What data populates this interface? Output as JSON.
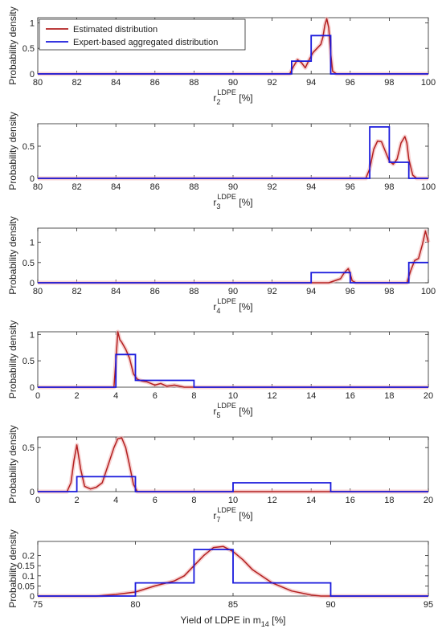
{
  "chart_data": [
    {
      "type": "line",
      "ylabel": "Probability density",
      "xlabel": {
        "base": "r",
        "sub": "2",
        "sup": "LDPE",
        "unit": " [%]"
      },
      "xlim": [
        80,
        100
      ],
      "xticks": [
        80,
        82,
        84,
        86,
        88,
        90,
        92,
        94,
        96,
        98,
        100
      ],
      "ylim": [
        0,
        1.1
      ],
      "yticks": [
        0,
        0.5,
        1
      ],
      "ytick_labels": [
        "0",
        "0.5",
        "1"
      ],
      "legend": {
        "placement": "top-left",
        "entries": [
          {
            "label": "Estimated distribution",
            "color": "#b32020"
          },
          {
            "label": "Expert-based aggregated distribution",
            "color": "#1a1adc"
          }
        ]
      },
      "series": [
        {
          "name": "Estimated distribution",
          "color": "#b32020",
          "x": [
            80,
            92.9,
            93.1,
            93.3,
            93.5,
            93.7,
            93.9,
            94.1,
            94.3,
            94.5,
            94.6,
            94.7,
            94.8,
            94.9,
            95.0,
            95.1,
            95.3,
            100
          ],
          "y": [
            0,
            0,
            0.15,
            0.28,
            0.22,
            0.12,
            0.28,
            0.42,
            0.5,
            0.58,
            0.72,
            0.95,
            1.08,
            0.9,
            0.4,
            0.05,
            0,
            0
          ]
        },
        {
          "name": "Expert-based aggregated distribution",
          "color": "#1a1adc",
          "step": true,
          "edges": [
            80,
            93,
            94,
            95,
            100
          ],
          "values": [
            0,
            0.25,
            0.75,
            0
          ]
        }
      ]
    },
    {
      "type": "line",
      "ylabel": "Probability density",
      "xlabel": {
        "base": "r",
        "sub": "3",
        "sup": "LDPE",
        "unit": " [%]"
      },
      "xlim": [
        80,
        100
      ],
      "xticks": [
        80,
        82,
        84,
        86,
        88,
        90,
        92,
        94,
        96,
        98,
        100
      ],
      "ylim": [
        0,
        0.85
      ],
      "yticks": [
        0,
        0.5
      ],
      "ytick_labels": [
        "0",
        "0.5"
      ],
      "series": [
        {
          "name": "Estimated distribution",
          "color": "#b32020",
          "x": [
            80,
            96.8,
            97.0,
            97.2,
            97.4,
            97.6,
            97.8,
            98.0,
            98.2,
            98.4,
            98.6,
            98.8,
            98.9,
            99.0,
            99.2,
            99.4,
            100
          ],
          "y": [
            0,
            0,
            0.15,
            0.45,
            0.58,
            0.57,
            0.42,
            0.27,
            0.22,
            0.3,
            0.55,
            0.65,
            0.55,
            0.3,
            0.05,
            0,
            0
          ]
        },
        {
          "name": "Expert-based aggregated distribution",
          "color": "#1a1adc",
          "step": true,
          "edges": [
            80,
            97,
            98,
            99,
            100
          ],
          "values": [
            0,
            0.8,
            0.25,
            0
          ]
        }
      ]
    },
    {
      "type": "line",
      "ylabel": "Probability density",
      "xlabel": {
        "base": "r",
        "sub": "4",
        "sup": "LDPE",
        "unit": " [%]"
      },
      "xlim": [
        80,
        100
      ],
      "xticks": [
        80,
        82,
        84,
        86,
        88,
        90,
        92,
        94,
        96,
        98,
        100
      ],
      "ylim": [
        0,
        1.35
      ],
      "yticks": [
        0,
        0.5,
        1
      ],
      "ytick_labels": [
        "0",
        "0.5",
        "1"
      ],
      "series": [
        {
          "name": "Estimated distribution",
          "color": "#b32020",
          "x": [
            80,
            94.9,
            95.2,
            95.5,
            95.7,
            95.9,
            96.0,
            96.1,
            96.3,
            98.9,
            99.1,
            99.3,
            99.5,
            99.7,
            99.85,
            100
          ],
          "y": [
            0,
            0,
            0.05,
            0.1,
            0.25,
            0.35,
            0.22,
            0.05,
            0,
            0,
            0.3,
            0.55,
            0.6,
            0.95,
            1.28,
            1.0
          ]
        },
        {
          "name": "Expert-based aggregated distribution",
          "color": "#1a1adc",
          "step": true,
          "edges": [
            80,
            94,
            96,
            99,
            100
          ],
          "values": [
            0,
            0.25,
            0,
            0.5
          ]
        }
      ]
    },
    {
      "type": "line",
      "ylabel": "Probability density",
      "xlabel": {
        "base": "r",
        "sub": "5",
        "sup": "LDPE",
        "unit": " [%]"
      },
      "xlim": [
        0,
        20
      ],
      "xticks": [
        0,
        2,
        4,
        6,
        8,
        10,
        12,
        14,
        16,
        18,
        20
      ],
      "ylim": [
        0,
        1.05
      ],
      "yticks": [
        0,
        0.5,
        1
      ],
      "ytick_labels": [
        "0",
        "0.5",
        "1"
      ],
      "series": [
        {
          "name": "Estimated distribution",
          "color": "#b32020",
          "x": [
            0,
            3.9,
            4.0,
            4.1,
            4.2,
            4.3,
            4.5,
            4.7,
            4.9,
            5.1,
            5.3,
            5.6,
            6.0,
            6.3,
            6.6,
            7.0,
            7.5,
            20
          ],
          "y": [
            0,
            0,
            0.5,
            1.05,
            0.9,
            0.85,
            0.72,
            0.55,
            0.25,
            0.15,
            0.12,
            0.1,
            0.04,
            0.07,
            0.02,
            0.04,
            0,
            0
          ]
        },
        {
          "name": "Expert-based aggregated distribution",
          "color": "#1a1adc",
          "step": true,
          "edges": [
            0,
            4,
            5,
            8,
            20
          ],
          "values": [
            0,
            0.62,
            0.13,
            0
          ]
        }
      ]
    },
    {
      "type": "line",
      "ylabel": "Probability density",
      "xlabel": {
        "base": "r",
        "sub": "7",
        "sup": "LDPE",
        "unit": " [%]"
      },
      "xlim": [
        0,
        20
      ],
      "xticks": [
        0,
        2,
        4,
        6,
        8,
        10,
        12,
        14,
        16,
        18,
        20
      ],
      "ylim": [
        0,
        0.62
      ],
      "yticks": [
        0,
        0.5
      ],
      "ytick_labels": [
        "0",
        "0.5"
      ],
      "series": [
        {
          "name": "Estimated distribution",
          "color": "#b32020",
          "x": [
            0,
            1.5,
            1.7,
            1.85,
            2.0,
            2.2,
            2.4,
            2.7,
            3.0,
            3.3,
            3.6,
            3.9,
            4.1,
            4.3,
            4.5,
            4.7,
            4.9,
            5.1,
            20
          ],
          "y": [
            0,
            0,
            0.1,
            0.35,
            0.53,
            0.25,
            0.06,
            0.03,
            0.05,
            0.1,
            0.3,
            0.5,
            0.6,
            0.61,
            0.5,
            0.3,
            0.08,
            0,
            0
          ]
        },
        {
          "name": "Expert-based aggregated distribution",
          "color": "#1a1adc",
          "step": true,
          "edges": [
            0,
            2,
            5,
            10,
            15,
            20
          ],
          "values": [
            0,
            0.17,
            0,
            0.1,
            0
          ]
        }
      ]
    },
    {
      "type": "line",
      "ylabel": "Probability density",
      "xlabel": {
        "text": "Yield of LDPE in m",
        "sub": "14",
        "unit": " [%]"
      },
      "xlim": [
        75,
        95
      ],
      "xticks": [
        75,
        80,
        85,
        90,
        95
      ],
      "ylim": [
        0,
        0.27
      ],
      "yticks": [
        0,
        0.05,
        0.1,
        0.15,
        0.2
      ],
      "ytick_labels": [
        "0",
        "0.05",
        "0.1",
        "0.15",
        "0.2"
      ],
      "series": [
        {
          "name": "Estimated distribution",
          "color": "#b32020",
          "x": [
            75,
            78,
            79,
            80,
            81,
            82,
            82.5,
            83,
            83.5,
            84,
            84.5,
            85,
            85.5,
            86,
            87,
            88,
            89,
            89.5,
            95
          ],
          "y": [
            0,
            0,
            0.008,
            0.02,
            0.05,
            0.075,
            0.1,
            0.15,
            0.2,
            0.24,
            0.245,
            0.22,
            0.18,
            0.13,
            0.065,
            0.025,
            0.005,
            0,
            0
          ]
        },
        {
          "name": "Expert-based aggregated distribution",
          "color": "#1a1adc",
          "step": true,
          "edges": [
            75,
            80,
            83,
            85,
            90,
            95
          ],
          "values": [
            0,
            0.065,
            0.23,
            0.065,
            0
          ]
        }
      ]
    }
  ]
}
